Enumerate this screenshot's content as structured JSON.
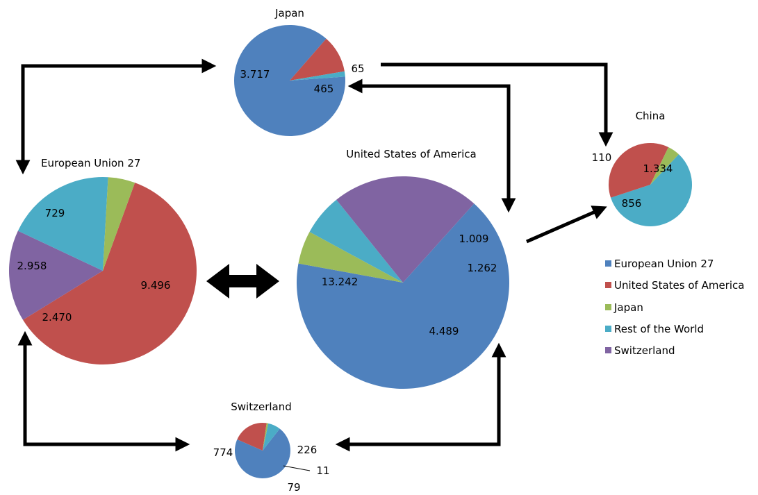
{
  "chart_data": {
    "type": "pie",
    "legend_position": "right",
    "legend": [
      {
        "label": "European Union 27",
        "color": "#4F81BD"
      },
      {
        "label": "United States of America",
        "color": "#C0504D"
      },
      {
        "label": "Japan",
        "color": "#9BBB59"
      },
      {
        "label": "Rest of the World",
        "color": "#4BACC6"
      },
      {
        "label": "Switzerland",
        "color": "#8064A2"
      }
    ],
    "pies": [
      {
        "title": "Japan",
        "slices": [
          {
            "category": "European Union 27",
            "value": 3717,
            "label": "3.717"
          },
          {
            "category": "United States of America",
            "value": 465,
            "label": "465"
          },
          {
            "category": "Rest of the World",
            "value": 65,
            "label": "65"
          }
        ]
      },
      {
        "title": "China",
        "slices": [
          {
            "category": "Rest of the World",
            "value": 1334,
            "label": "1.334"
          },
          {
            "category": "United States of America",
            "value": 856,
            "label": "856"
          },
          {
            "category": "Japan",
            "value": 110,
            "label": "110"
          }
        ]
      },
      {
        "title": "European Union 27",
        "slices": [
          {
            "category": "United States of America",
            "value": 9496,
            "label": "9.496"
          },
          {
            "category": "Switzerland",
            "value": 2470,
            "label": "2.470"
          },
          {
            "category": "Rest of the World",
            "value": 2958,
            "label": "2.958"
          },
          {
            "category": "Japan",
            "value": 729,
            "label": "729"
          }
        ]
      },
      {
        "title": "United States of America",
        "slices": [
          {
            "category": "European Union 27",
            "value": 13242,
            "label": "13.242"
          },
          {
            "category": "Japan",
            "value": 1009,
            "label": "1.009"
          },
          {
            "category": "Rest of the World",
            "value": 1262,
            "label": "1.262"
          },
          {
            "category": "Switzerland",
            "value": 4489,
            "label": "4.489"
          }
        ]
      },
      {
        "title": "Switzerland",
        "slices": [
          {
            "category": "European Union 27",
            "value": 774,
            "label": "774"
          },
          {
            "category": "United States of America",
            "value": 226,
            "label": "226"
          },
          {
            "category": "Japan",
            "value": 11,
            "label": "11"
          },
          {
            "category": "Rest of the World",
            "value": 79,
            "label": "79"
          }
        ]
      }
    ],
    "flows": [
      {
        "from": "European Union 27",
        "to": "Japan",
        "direction": "two-way"
      },
      {
        "from": "Japan",
        "to": "China",
        "direction": "one-way"
      },
      {
        "from": "Japan",
        "to": "United States of America",
        "direction": "two-way"
      },
      {
        "from": "United States of America",
        "to": "China",
        "direction": "one-way"
      },
      {
        "from": "European Union 27",
        "to": "United States of America",
        "direction": "two-way"
      },
      {
        "from": "European Union 27",
        "to": "Switzerland",
        "direction": "two-way"
      },
      {
        "from": "Switzerland",
        "to": "United States of America",
        "direction": "two-way"
      }
    ]
  }
}
